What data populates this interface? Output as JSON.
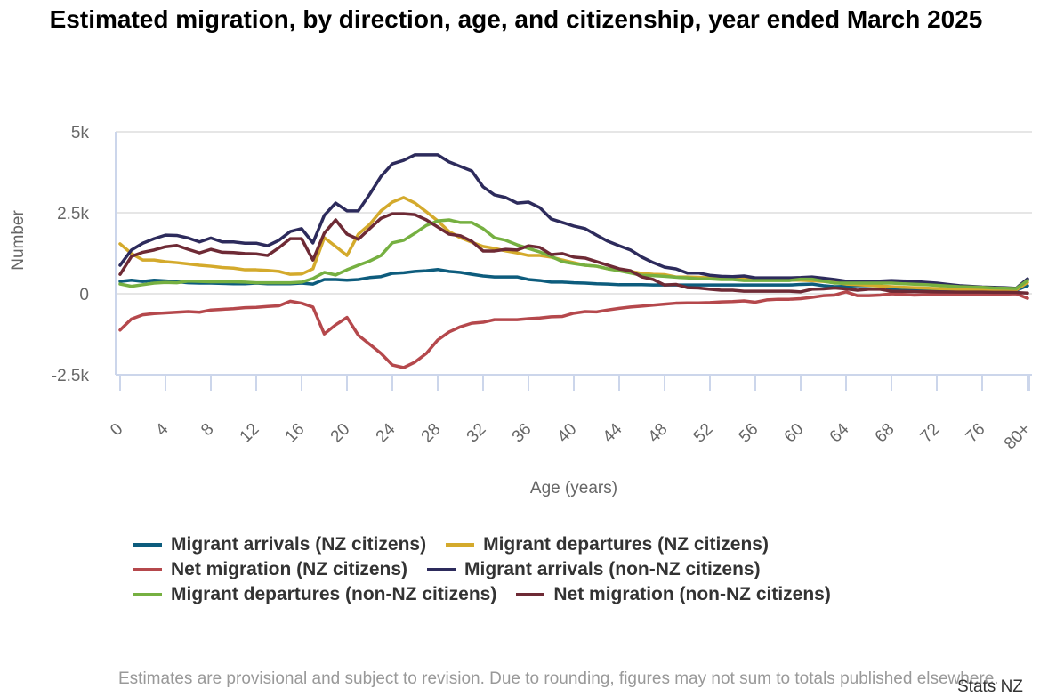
{
  "chart_data": {
    "type": "line",
    "title": "Estimated migration, by direction, age, and citizenship, year ended March 2025",
    "xlabel": "Age (years)",
    "ylabel": "Number",
    "ylim": [
      -2500,
      5000
    ],
    "yticks": [
      {
        "value": 5000,
        "label": "5k"
      },
      {
        "value": 2500,
        "label": "2.5k"
      },
      {
        "value": 0,
        "label": "0"
      },
      {
        "value": -2500,
        "label": "-2.5k"
      }
    ],
    "xticks": [
      "0",
      "4",
      "8",
      "12",
      "16",
      "20",
      "24",
      "28",
      "32",
      "36",
      "40",
      "44",
      "48",
      "52",
      "56",
      "60",
      "64",
      "68",
      "72",
      "76",
      "80+"
    ],
    "x": [
      "0",
      "1",
      "2",
      "3",
      "4",
      "5",
      "6",
      "7",
      "8",
      "9",
      "10",
      "11",
      "12",
      "13",
      "14",
      "15",
      "16",
      "17",
      "18",
      "19",
      "20",
      "21",
      "22",
      "23",
      "24",
      "25",
      "26",
      "27",
      "28",
      "29",
      "30",
      "31",
      "32",
      "33",
      "34",
      "35",
      "36",
      "37",
      "38",
      "39",
      "40",
      "41",
      "42",
      "43",
      "44",
      "45",
      "46",
      "47",
      "48",
      "49",
      "50",
      "51",
      "52",
      "53",
      "54",
      "55",
      "56",
      "57",
      "58",
      "59",
      "60",
      "61",
      "62",
      "63",
      "64",
      "65",
      "66",
      "67",
      "68",
      "69",
      "70",
      "71",
      "72",
      "73",
      "74",
      "75",
      "76",
      "77",
      "78",
      "79",
      "80+"
    ],
    "grid": "horizontal",
    "legend_position": "bottom",
    "series": [
      {
        "name": "Migrant arrivals (NZ citizens)",
        "color": "#0d5c7d",
        "values": [
          380,
          420,
          380,
          420,
          400,
          370,
          340,
          330,
          330,
          320,
          310,
          310,
          330,
          310,
          310,
          310,
          330,
          300,
          440,
          440,
          420,
          440,
          500,
          530,
          630,
          650,
          690,
          710,
          750,
          690,
          660,
          600,
          550,
          520,
          520,
          520,
          440,
          410,
          360,
          360,
          340,
          330,
          310,
          300,
          280,
          280,
          280,
          270,
          270,
          270,
          270,
          270,
          270,
          270,
          270,
          270,
          270,
          270,
          270,
          270,
          290,
          300,
          250,
          220,
          230,
          250,
          250,
          250,
          160,
          150,
          140,
          135,
          130,
          125,
          120,
          115,
          110,
          110,
          110,
          110,
          250
        ]
      },
      {
        "name": "Migrant departures (NZ citizens)",
        "color": "#d4aa2c",
        "values": [
          1540,
          1240,
          1040,
          1040,
          990,
          960,
          920,
          880,
          850,
          810,
          790,
          740,
          740,
          720,
          690,
          600,
          610,
          770,
          1730,
          1460,
          1180,
          1840,
          2140,
          2560,
          2830,
          2970,
          2800,
          2530,
          2250,
          1920,
          1730,
          1590,
          1460,
          1400,
          1320,
          1260,
          1180,
          1180,
          1130,
          1040,
          960,
          880,
          850,
          770,
          740,
          690,
          630,
          600,
          590,
          520,
          520,
          510,
          490,
          490,
          490,
          500,
          480,
          460,
          440,
          420,
          420,
          400,
          380,
          350,
          300,
          280,
          260,
          240,
          220,
          200,
          190,
          175,
          160,
          150,
          140,
          135,
          130,
          125,
          120,
          120,
          350
        ]
      },
      {
        "name": "Net migration (NZ citizens)",
        "color": "#b5484c",
        "values": [
          -1120,
          -780,
          -650,
          -610,
          -590,
          -570,
          -550,
          -570,
          -500,
          -480,
          -460,
          -430,
          -420,
          -390,
          -370,
          -230,
          -290,
          -410,
          -1240,
          -960,
          -730,
          -1280,
          -1560,
          -1840,
          -2200,
          -2280,
          -2110,
          -1840,
          -1430,
          -1180,
          -1020,
          -910,
          -880,
          -800,
          -800,
          -800,
          -770,
          -750,
          -710,
          -700,
          -600,
          -550,
          -560,
          -500,
          -450,
          -410,
          -380,
          -350,
          -320,
          -290,
          -280,
          -280,
          -270,
          -250,
          -240,
          -220,
          -260,
          -190,
          -170,
          -170,
          -150,
          -110,
          -60,
          -40,
          60,
          -60,
          -60,
          -40,
          0,
          -20,
          -40,
          -30,
          -20,
          -20,
          -20,
          -20,
          -20,
          -10,
          -10,
          0,
          -140
        ]
      },
      {
        "name": "Migrant arrivals (non-NZ citizens)",
        "color": "#2d2b5c",
        "values": [
          880,
          1350,
          1560,
          1700,
          1810,
          1800,
          1720,
          1600,
          1720,
          1600,
          1600,
          1560,
          1560,
          1480,
          1650,
          1920,
          2010,
          1570,
          2420,
          2800,
          2560,
          2560,
          3070,
          3620,
          4010,
          4120,
          4290,
          4290,
          4290,
          4070,
          3930,
          3790,
          3300,
          3050,
          2970,
          2800,
          2830,
          2660,
          2310,
          2200,
          2090,
          2010,
          1810,
          1620,
          1480,
          1350,
          1130,
          960,
          820,
          770,
          640,
          640,
          570,
          540,
          530,
          550,
          490,
          490,
          490,
          490,
          500,
          520,
          480,
          440,
          390,
          390,
          390,
          390,
          410,
          395,
          380,
          355,
          330,
          290,
          250,
          230,
          210,
          200,
          190,
          170,
          460
        ]
      },
      {
        "name": "Migrant departures (non-NZ citizens)",
        "color": "#76b041",
        "values": [
          300,
          230,
          280,
          330,
          350,
          340,
          390,
          380,
          370,
          370,
          370,
          360,
          340,
          340,
          340,
          340,
          360,
          470,
          660,
          580,
          740,
          880,
          1010,
          1180,
          1570,
          1650,
          1870,
          2110,
          2250,
          2280,
          2200,
          2200,
          2010,
          1730,
          1650,
          1510,
          1400,
          1290,
          1150,
          990,
          930,
          880,
          850,
          770,
          710,
          640,
          570,
          560,
          540,
          510,
          490,
          460,
          460,
          440,
          440,
          410,
          410,
          410,
          410,
          410,
          450,
          450,
          390,
          330,
          330,
          330,
          330,
          330,
          330,
          310,
          295,
          280,
          260,
          240,
          220,
          210,
          200,
          180,
          170,
          160,
          410
        ]
      },
      {
        "name": "Net migration (non-NZ citizens)",
        "color": "#6e2a35",
        "values": [
          600,
          1150,
          1280,
          1350,
          1450,
          1490,
          1370,
          1260,
          1370,
          1280,
          1270,
          1240,
          1230,
          1180,
          1420,
          1700,
          1700,
          1040,
          1870,
          2280,
          1840,
          1680,
          2010,
          2330,
          2470,
          2470,
          2440,
          2280,
          2060,
          1840,
          1790,
          1620,
          1320,
          1320,
          1370,
          1350,
          1480,
          1430,
          1210,
          1240,
          1130,
          1100,
          990,
          880,
          770,
          710,
          520,
          440,
          270,
          290,
          190,
          180,
          140,
          110,
          110,
          80,
          80,
          80,
          80,
          80,
          60,
          140,
          150,
          180,
          150,
          110,
          140,
          140,
          80,
          75,
          70,
          65,
          60,
          55,
          50,
          50,
          50,
          45,
          45,
          40,
          20
        ]
      }
    ]
  },
  "footnote": "Estimates are provisional and subject to revision. Due to rounding, figures may not sum to totals published elsewhere.",
  "credit": "Stats NZ"
}
